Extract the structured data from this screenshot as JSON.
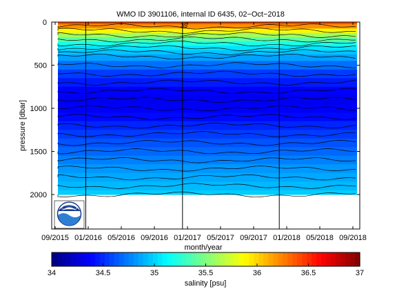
{
  "chart_data": {
    "type": "heatmap",
    "title": "WMO ID 3901106, internal ID 6435, 02−Oct−2018",
    "xlabel": "month/year",
    "ylabel": "pressure [dbar]",
    "x_ticks": [
      "09/2015",
      "01/2016",
      "05/2016",
      "09/2016",
      "01/2017",
      "05/2017",
      "09/2017",
      "01/2018",
      "05/2018",
      "09/2018"
    ],
    "x_range": [
      "09/2015",
      "10/2018"
    ],
    "y_ticks": [
      0,
      500,
      1000,
      1500,
      2000
    ],
    "y_range": [
      0,
      2400
    ],
    "y_reversed": true,
    "max_profile_pressure": 2000,
    "colorbar": {
      "label": "salinity [psu]",
      "min": 34,
      "max": 37,
      "ticks": [
        34,
        34.5,
        35,
        35.5,
        36,
        36.5,
        37
      ],
      "colormap": "jet"
    },
    "salinity_profile": [
      {
        "pressure": 0,
        "salinity": 36.4
      },
      {
        "pressure": 50,
        "salinity": 36.2
      },
      {
        "pressure": 100,
        "salinity": 35.9
      },
      {
        "pressure": 150,
        "salinity": 35.6
      },
      {
        "pressure": 200,
        "salinity": 35.4
      },
      {
        "pressure": 250,
        "salinity": 35.2
      },
      {
        "pressure": 300,
        "salinity": 35.05
      },
      {
        "pressure": 350,
        "salinity": 34.95
      },
      {
        "pressure": 400,
        "salinity": 34.85
      },
      {
        "pressure": 500,
        "salinity": 34.7
      },
      {
        "pressure": 600,
        "salinity": 34.55
      },
      {
        "pressure": 700,
        "salinity": 34.45
      },
      {
        "pressure": 800,
        "salinity": 34.37
      },
      {
        "pressure": 900,
        "salinity": 34.33
      },
      {
        "pressure": 1000,
        "salinity": 34.35
      },
      {
        "pressure": 1100,
        "salinity": 34.4
      },
      {
        "pressure": 1200,
        "salinity": 34.48
      },
      {
        "pressure": 1300,
        "salinity": 34.55
      },
      {
        "pressure": 1400,
        "salinity": 34.62
      },
      {
        "pressure": 1500,
        "salinity": 34.68
      },
      {
        "pressure": 1600,
        "salinity": 34.75
      },
      {
        "pressure": 1700,
        "salinity": 34.82
      },
      {
        "pressure": 1800,
        "salinity": 34.87
      },
      {
        "pressure": 1900,
        "salinity": 34.92
      },
      {
        "pressure": 2000,
        "salinity": 34.98
      }
    ],
    "contour_label": "35",
    "logo": "noaa-logo"
  }
}
